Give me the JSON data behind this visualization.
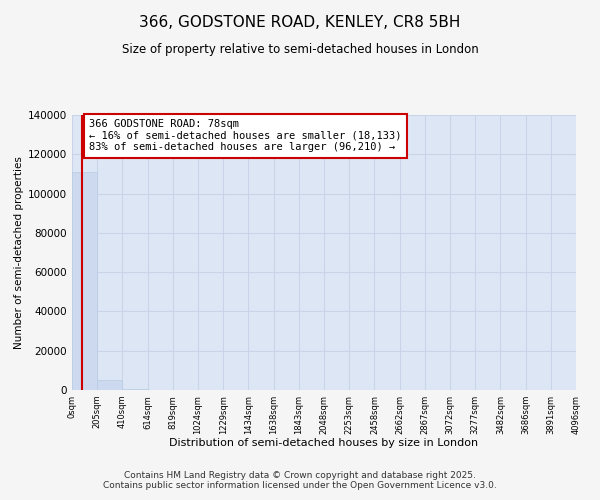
{
  "title": "366, GODSTONE ROAD, KENLEY, CR8 5BH",
  "subtitle": "Size of property relative to semi-detached houses in London",
  "xlabel": "Distribution of semi-detached houses by size in London",
  "ylabel": "Number of semi-detached properties",
  "property_size": 78,
  "property_label": "366 GODSTONE ROAD: 78sqm",
  "pct_smaller": 16,
  "pct_larger": 83,
  "count_smaller": 18133,
  "count_larger": 96210,
  "bin_edges": [
    0,
    205,
    410,
    614,
    819,
    1024,
    1229,
    1434,
    1638,
    1843,
    2048,
    2253,
    2458,
    2662,
    2867,
    3072,
    3277,
    3482,
    3686,
    3891,
    4096
  ],
  "bar_values": [
    111000,
    5200,
    400,
    100,
    50,
    30,
    18,
    12,
    9,
    7,
    5,
    4,
    3,
    3,
    2,
    2,
    1,
    1,
    1,
    1
  ],
  "bar_color": "#ccd9ee",
  "bar_edge_color": "#b8cce4",
  "property_line_color": "#cc0000",
  "annotation_box_color": "#cc0000",
  "ylim": [
    0,
    140000
  ],
  "yticks": [
    0,
    20000,
    40000,
    60000,
    80000,
    100000,
    120000,
    140000
  ],
  "tick_labels": [
    "0sqm",
    "205sqm",
    "410sqm",
    "614sqm",
    "819sqm",
    "1024sqm",
    "1229sqm",
    "1434sqm",
    "1638sqm",
    "1843sqm",
    "2048sqm",
    "2253sqm",
    "2458sqm",
    "2662sqm",
    "2867sqm",
    "3072sqm",
    "3277sqm",
    "3482sqm",
    "3686sqm",
    "3891sqm",
    "4096sqm"
  ],
  "footer": "Contains HM Land Registry data © Crown copyright and database right 2025.\nContains public sector information licensed under the Open Government Licence v3.0.",
  "grid_color": "#c8d4e8",
  "bg_color": "#dde6f5",
  "fig_bg": "#f5f5f5"
}
